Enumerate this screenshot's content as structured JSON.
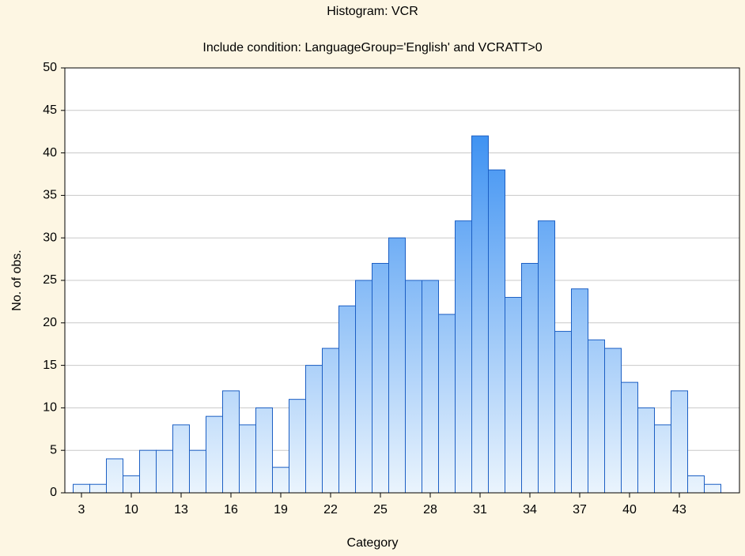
{
  "chart_data": {
    "type": "histogram",
    "title": "Histogram: VCR",
    "subtitle": "Include condition: LanguageGroup='English' and VCRATT>0",
    "x_label": "Category",
    "y_label": "No. of obs.",
    "categories": [
      "3",
      null,
      null,
      "10",
      null,
      null,
      "13",
      null,
      null,
      "16",
      null,
      null,
      "19",
      null,
      null,
      "22",
      null,
      null,
      "25",
      null,
      null,
      "28",
      null,
      null,
      "31",
      null,
      null,
      "34",
      null,
      null,
      "37",
      null,
      null,
      "40",
      null,
      null,
      "43",
      null,
      null
    ],
    "values": [
      1,
      1,
      4,
      2,
      5,
      5,
      8,
      5,
      9,
      12,
      8,
      10,
      3,
      11,
      15,
      17,
      22,
      25,
      27,
      30,
      25,
      25,
      21,
      32,
      42,
      38,
      23,
      27,
      32,
      19,
      24,
      18,
      17,
      13,
      10,
      8,
      12,
      2,
      1
    ],
    "color": "#1f80f0",
    "ylim": [
      0,
      50
    ],
    "yticks": [
      0,
      5,
      10,
      15,
      20,
      25,
      30,
      35,
      40,
      45,
      50
    ],
    "grid": true
  }
}
